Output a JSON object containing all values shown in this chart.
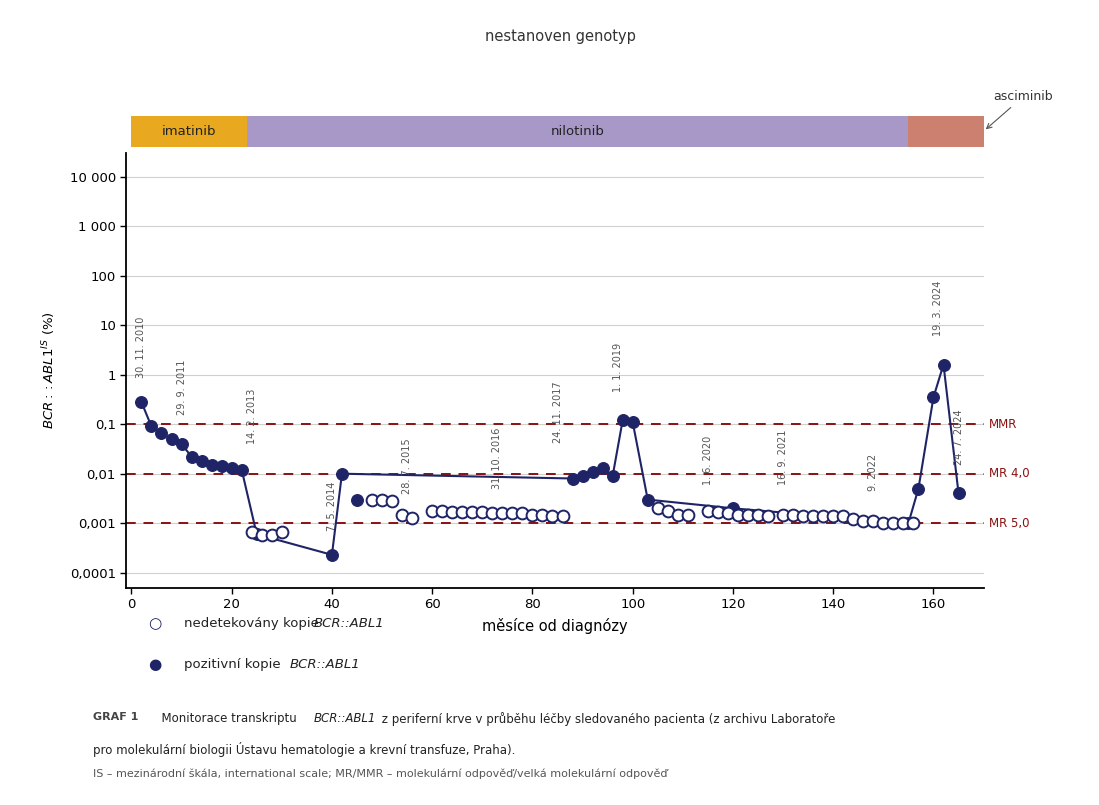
{
  "title_above": "nestanoven genotyp",
  "xlabel": "měsíce od diagnózy",
  "ylim_log_min": 5e-05,
  "ylim_log_max": 30000,
  "xlim_min": -1,
  "xlim_max": 170,
  "xticks": [
    0,
    20,
    40,
    60,
    80,
    100,
    120,
    140,
    160
  ],
  "ytick_vals": [
    0.0001,
    0.001,
    0.01,
    0.1,
    1,
    10,
    100,
    1000,
    10000
  ],
  "ytick_labels": [
    "0,0001",
    "0,001",
    "0,01",
    "0,1",
    "1",
    "10",
    "100",
    "1 000",
    "10 000"
  ],
  "mmr_line": 0.1,
  "mr4_line": 0.01,
  "mr5_line": 0.001,
  "drug_bars": [
    {
      "label": "imatinib",
      "x_start": 0,
      "x_end": 23,
      "color": "#E8A820"
    },
    {
      "label": "nilotinib",
      "x_start": 23,
      "x_end": 155,
      "color": "#A898C8"
    },
    {
      "label": "asciminib",
      "x_start": 155,
      "x_end": 170,
      "color": "#CC8070"
    }
  ],
  "positive_points": [
    [
      2,
      0.28
    ],
    [
      4,
      0.09
    ],
    [
      6,
      0.065
    ],
    [
      8,
      0.05
    ],
    [
      10,
      0.04
    ],
    [
      12,
      0.022
    ],
    [
      14,
      0.018
    ],
    [
      16,
      0.015
    ],
    [
      18,
      0.014
    ],
    [
      20,
      0.013
    ],
    [
      22,
      0.012
    ],
    [
      25,
      0.0006
    ],
    [
      40,
      0.00023
    ],
    [
      42,
      0.01
    ],
    [
      45,
      0.003
    ],
    [
      88,
      0.008
    ],
    [
      90,
      0.009
    ],
    [
      92,
      0.011
    ],
    [
      94,
      0.013
    ],
    [
      96,
      0.009
    ],
    [
      98,
      0.12
    ],
    [
      100,
      0.11
    ],
    [
      103,
      0.003
    ],
    [
      120,
      0.002
    ],
    [
      155,
      0.001
    ],
    [
      157,
      0.005
    ],
    [
      160,
      0.35
    ],
    [
      162,
      1.6
    ],
    [
      165,
      0.004
    ]
  ],
  "negative_points": [
    [
      24,
      0.00065
    ],
    [
      26,
      0.00058
    ],
    [
      28,
      0.00058
    ],
    [
      30,
      0.00065
    ],
    [
      48,
      0.003
    ],
    [
      50,
      0.003
    ],
    [
      52,
      0.0028
    ],
    [
      54,
      0.0015
    ],
    [
      56,
      0.0013
    ],
    [
      60,
      0.0018
    ],
    [
      62,
      0.0018
    ],
    [
      64,
      0.0017
    ],
    [
      66,
      0.0017
    ],
    [
      68,
      0.0017
    ],
    [
      70,
      0.0017
    ],
    [
      72,
      0.0016
    ],
    [
      74,
      0.0016
    ],
    [
      76,
      0.0016
    ],
    [
      78,
      0.0016
    ],
    [
      80,
      0.0015
    ],
    [
      82,
      0.0015
    ],
    [
      84,
      0.0014
    ],
    [
      86,
      0.0014
    ],
    [
      105,
      0.002
    ],
    [
      107,
      0.0018
    ],
    [
      109,
      0.0015
    ],
    [
      111,
      0.0015
    ],
    [
      115,
      0.0018
    ],
    [
      117,
      0.0017
    ],
    [
      119,
      0.0016
    ],
    [
      121,
      0.0015
    ],
    [
      123,
      0.0015
    ],
    [
      125,
      0.0015
    ],
    [
      127,
      0.0014
    ],
    [
      130,
      0.0015
    ],
    [
      132,
      0.0015
    ],
    [
      134,
      0.0014
    ],
    [
      136,
      0.0014
    ],
    [
      138,
      0.0014
    ],
    [
      140,
      0.0014
    ],
    [
      142,
      0.0014
    ],
    [
      144,
      0.0012
    ],
    [
      146,
      0.0011
    ],
    [
      148,
      0.0011
    ],
    [
      150,
      0.001
    ],
    [
      152,
      0.001
    ],
    [
      154,
      0.001
    ],
    [
      156,
      0.001
    ]
  ],
  "line_points": [
    [
      2,
      0.28
    ],
    [
      4,
      0.09
    ],
    [
      6,
      0.065
    ],
    [
      8,
      0.05
    ],
    [
      10,
      0.04
    ],
    [
      12,
      0.022
    ],
    [
      14,
      0.018
    ],
    [
      16,
      0.015
    ],
    [
      18,
      0.014
    ],
    [
      20,
      0.013
    ],
    [
      22,
      0.012
    ],
    [
      25,
      0.0006
    ],
    [
      40,
      0.00023
    ],
    [
      42,
      0.01
    ],
    [
      88,
      0.008
    ],
    [
      90,
      0.009
    ],
    [
      92,
      0.011
    ],
    [
      94,
      0.013
    ],
    [
      96,
      0.009
    ],
    [
      98,
      0.12
    ],
    [
      100,
      0.11
    ],
    [
      103,
      0.003
    ],
    [
      120,
      0.002
    ],
    [
      155,
      0.001
    ],
    [
      157,
      0.005
    ],
    [
      160,
      0.35
    ],
    [
      162,
      1.6
    ],
    [
      165,
      0.004
    ]
  ],
  "date_annotations": [
    {
      "x": 2,
      "y_anchor": 0.28,
      "label": "30. 11. 2010"
    },
    {
      "x": 10,
      "y_anchor": 0.05,
      "label": "29. 9. 2011"
    },
    {
      "x": 24,
      "y_anchor": 0.013,
      "label": "14. 2. 2013"
    },
    {
      "x": 40,
      "y_anchor": 0.00023,
      "label": "7. 5. 2014"
    },
    {
      "x": 55,
      "y_anchor": 0.0013,
      "label": "28. 7. 2015"
    },
    {
      "x": 73,
      "y_anchor": 0.0016,
      "label": "31. 10. 2016"
    },
    {
      "x": 85,
      "y_anchor": 0.014,
      "label": "24. 11. 2017"
    },
    {
      "x": 97,
      "y_anchor": 0.15,
      "label": "1. 1. 2019"
    },
    {
      "x": 115,
      "y_anchor": 0.002,
      "label": "1. 6. 2020"
    },
    {
      "x": 130,
      "y_anchor": 0.002,
      "label": "16. 9. 2021"
    },
    {
      "x": 148,
      "y_anchor": 0.0015,
      "label": "9. 2022"
    },
    {
      "x": 161,
      "y_anchor": 2.0,
      "label": "19. 3. 2024"
    },
    {
      "x": 165,
      "y_anchor": 0.005,
      "label": "24. 7. 2024"
    }
  ],
  "dark_navy": "#1E2466",
  "mmr_color": "#8B1010",
  "legend_label_open": "nedetekovány kopie",
  "legend_label_open_italic": "BCR::ABL1",
  "legend_label_filled": "pozitivní kopie",
  "legend_label_filled_italic": "BCR::ABL1",
  "caption_label": "GRAF 1",
  "caption_text1": "Monitorace transkriptu ",
  "caption_italic1": "BCR::ABL1",
  "caption_text2": " z periferní krve v průběhu léčby sledovaného pacienta (z archivu Laboratoře",
  "caption_line2": "pro molekulární biologii Ústavu hematologie a krevní transfuze, Praha).",
  "caption_note": "IS – mezinárodní škála, international scale; MR/MMR – molekulární odpověď/velká molekulární odpověď"
}
